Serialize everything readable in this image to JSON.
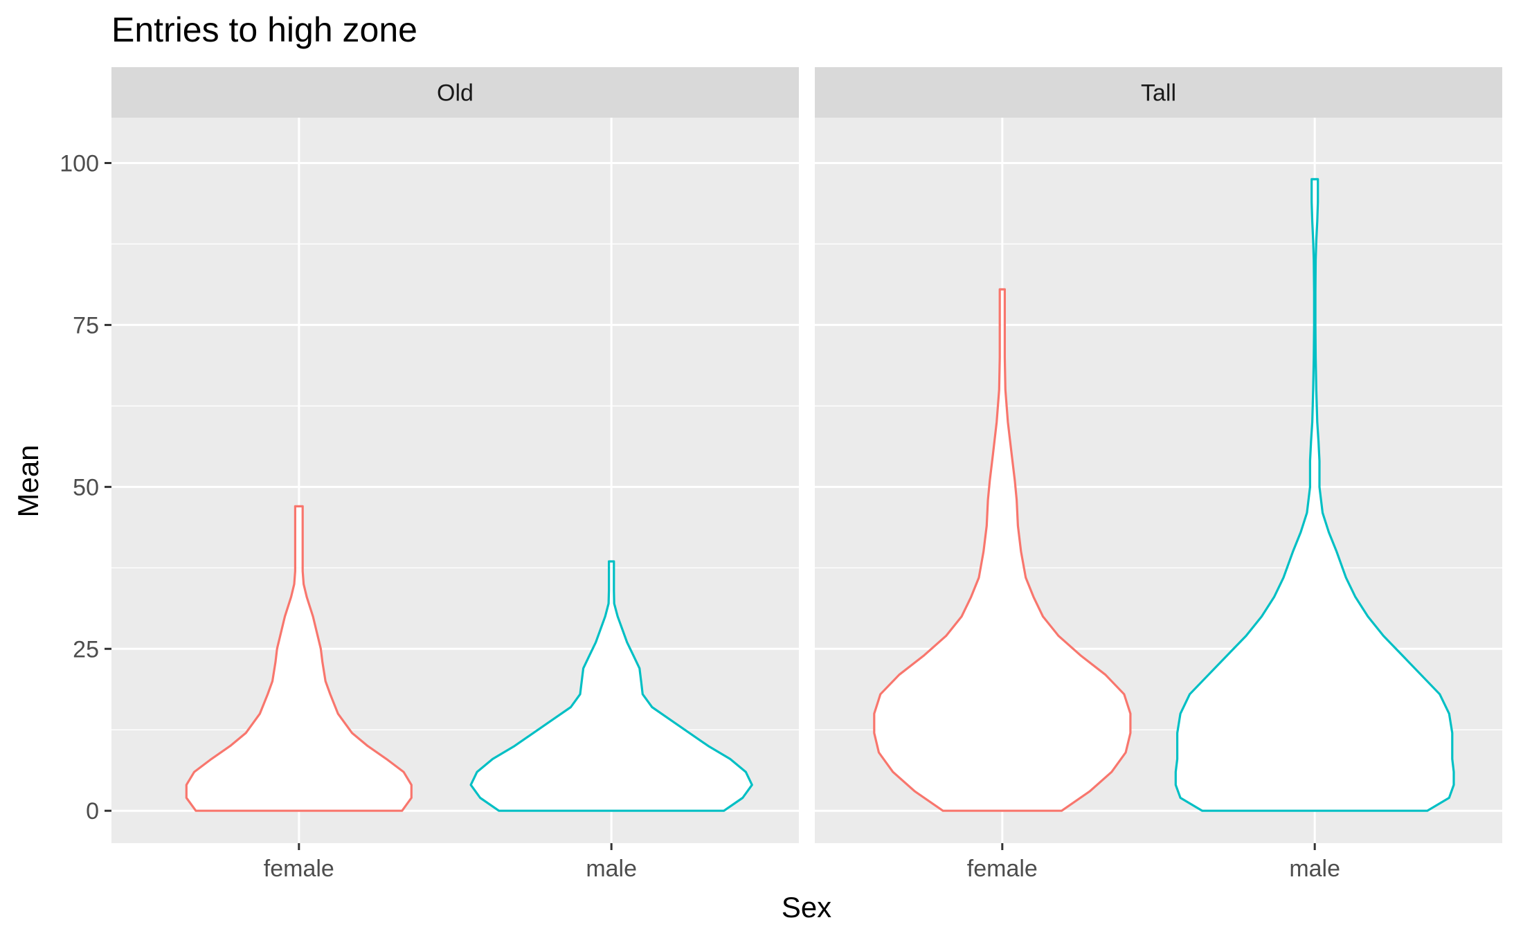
{
  "chart_data": {
    "type": "violin",
    "title": "Entries to high zone",
    "xlabel": "Sex",
    "ylabel": "Mean",
    "ylim": [
      -5,
      107
    ],
    "yticks": [
      0,
      25,
      50,
      75,
      100
    ],
    "categories": [
      "female",
      "male"
    ],
    "grid": true,
    "legend": "none",
    "colors": {
      "female": "#F8766D",
      "male": "#00BFC4"
    },
    "panels": [
      {
        "name": "Old",
        "violins": [
          {
            "category": "female",
            "max_half_width": 0.36,
            "profile": [
              [
                0,
                0.33
              ],
              [
                2,
                0.36
              ],
              [
                4,
                0.36
              ],
              [
                6,
                0.335
              ],
              [
                8,
                0.28
              ],
              [
                10,
                0.22
              ],
              [
                12,
                0.17
              ],
              [
                15,
                0.125
              ],
              [
                18,
                0.1
              ],
              [
                20,
                0.085
              ],
              [
                23,
                0.075
              ],
              [
                25,
                0.07
              ],
              [
                27,
                0.06
              ],
              [
                30,
                0.045
              ],
              [
                33,
                0.025
              ],
              [
                35,
                0.015
              ],
              [
                37,
                0.012
              ],
              [
                40,
                0.012
              ],
              [
                43,
                0.012
              ],
              [
                45,
                0.012
              ],
              [
                47,
                0.012
              ]
            ]
          },
          {
            "category": "male",
            "max_half_width": 0.45,
            "profile": [
              [
                0,
                0.36
              ],
              [
                2,
                0.42
              ],
              [
                4,
                0.45
              ],
              [
                6,
                0.43
              ],
              [
                8,
                0.38
              ],
              [
                10,
                0.31
              ],
              [
                12,
                0.25
              ],
              [
                14,
                0.19
              ],
              [
                16,
                0.13
              ],
              [
                18,
                0.1
              ],
              [
                20,
                0.095
              ],
              [
                22,
                0.09
              ],
              [
                24,
                0.07
              ],
              [
                26,
                0.05
              ],
              [
                28,
                0.035
              ],
              [
                30,
                0.02
              ],
              [
                32,
                0.009
              ],
              [
                34,
                0.008
              ],
              [
                36,
                0.008
              ],
              [
                38,
                0.008
              ],
              [
                38.5,
                0.008
              ]
            ]
          }
        ]
      },
      {
        "name": "Tall",
        "violins": [
          {
            "category": "female",
            "max_half_width": 0.41,
            "profile": [
              [
                0,
                0.19
              ],
              [
                3,
                0.28
              ],
              [
                6,
                0.35
              ],
              [
                9,
                0.395
              ],
              [
                12,
                0.41
              ],
              [
                15,
                0.41
              ],
              [
                18,
                0.39
              ],
              [
                21,
                0.33
              ],
              [
                24,
                0.25
              ],
              [
                27,
                0.18
              ],
              [
                30,
                0.13
              ],
              [
                33,
                0.1
              ],
              [
                36,
                0.075
              ],
              [
                40,
                0.06
              ],
              [
                44,
                0.05
              ],
              [
                48,
                0.046
              ],
              [
                51,
                0.04
              ],
              [
                55,
                0.03
              ],
              [
                60,
                0.018
              ],
              [
                65,
                0.01
              ],
              [
                70,
                0.008
              ],
              [
                74,
                0.008
              ],
              [
                80.5,
                0.008
              ]
            ]
          },
          {
            "category": "male",
            "max_half_width": 0.45,
            "profile": [
              [
                0,
                0.36
              ],
              [
                2,
                0.43
              ],
              [
                4,
                0.445
              ],
              [
                6,
                0.445
              ],
              [
                8,
                0.44
              ],
              [
                10,
                0.44
              ],
              [
                12,
                0.44
              ],
              [
                15,
                0.43
              ],
              [
                18,
                0.4
              ],
              [
                21,
                0.34
              ],
              [
                24,
                0.28
              ],
              [
                27,
                0.22
              ],
              [
                30,
                0.17
              ],
              [
                33,
                0.13
              ],
              [
                36,
                0.1
              ],
              [
                40,
                0.07
              ],
              [
                43,
                0.045
              ],
              [
                46,
                0.025
              ],
              [
                50,
                0.015
              ],
              [
                54,
                0.015
              ],
              [
                57,
                0.012
              ],
              [
                60,
                0.008
              ],
              [
                65,
                0.005
              ],
              [
                70,
                0.003
              ],
              [
                75,
                0.002
              ],
              [
                80,
                0.002
              ],
              [
                85,
                0.003
              ],
              [
                88,
                0.005
              ],
              [
                91,
                0.008
              ],
              [
                94,
                0.01
              ],
              [
                97.5,
                0.01
              ]
            ]
          }
        ]
      }
    ]
  }
}
